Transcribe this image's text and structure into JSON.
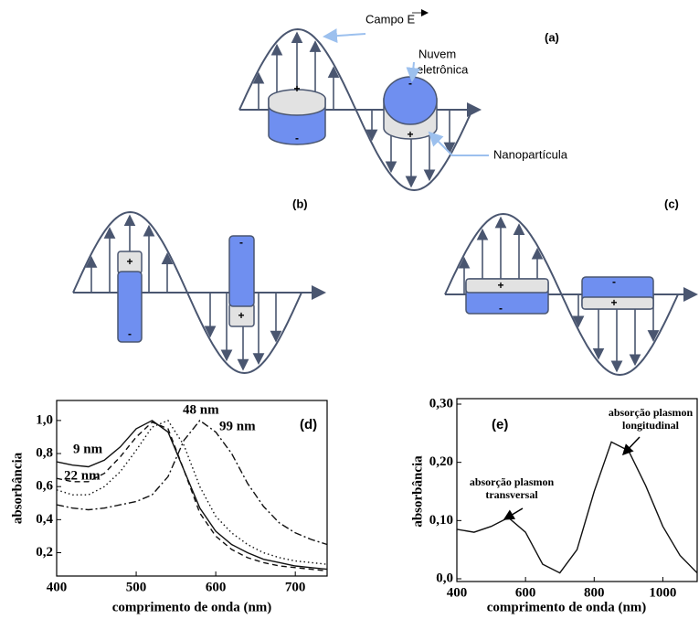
{
  "diagrams": {
    "signs": {
      "plus": "+",
      "minus": "-"
    },
    "a": {
      "label": "(a)",
      "field": "Campo E",
      "cloud": [
        "Nuvem",
        "eletrônica"
      ],
      "particle": "Nanopartícula"
    },
    "b": {
      "label": "(b)"
    },
    "c": {
      "label": "(c)"
    }
  },
  "chart_data": [
    {
      "type": "line",
      "panel": "(d)",
      "xlabel": "comprimento de onda (nm)",
      "ylabel": "absorbância",
      "x": [
        400,
        420,
        440,
        460,
        480,
        500,
        520,
        540,
        560,
        580,
        600,
        620,
        640,
        660,
        680,
        700,
        720,
        740
      ],
      "xlim": [
        400,
        740
      ],
      "xticks": [
        400,
        500,
        600,
        700
      ],
      "ylim": [
        0.07,
        1.11
      ],
      "yticks": [
        {
          "value": 0.2,
          "label": "0,2"
        },
        {
          "value": 0.4,
          "label": "0,4"
        },
        {
          "value": 0.6,
          "label": "0,6"
        },
        {
          "value": 0.8,
          "label": "0,8"
        },
        {
          "value": 1.0,
          "label": "1,0"
        }
      ],
      "series": [
        {
          "name": "9 nm",
          "color": "#111111",
          "line_style": "solid",
          "values": [
            0.75,
            0.73,
            0.72,
            0.76,
            0.84,
            0.95,
            1.0,
            0.93,
            0.7,
            0.47,
            0.33,
            0.25,
            0.2,
            0.16,
            0.14,
            0.12,
            0.11,
            0.1
          ]
        },
        {
          "name": "22 nm",
          "color": "#111111",
          "line_style": "dashed",
          "values": [
            0.65,
            0.63,
            0.63,
            0.68,
            0.78,
            0.9,
            0.99,
            0.95,
            0.7,
            0.44,
            0.3,
            0.22,
            0.17,
            0.14,
            0.12,
            0.11,
            0.1,
            0.09
          ]
        },
        {
          "name": "48 nm",
          "color": "#111111",
          "line_style": "dotted",
          "values": [
            0.58,
            0.55,
            0.55,
            0.6,
            0.69,
            0.82,
            0.96,
            1.0,
            0.85,
            0.6,
            0.42,
            0.32,
            0.25,
            0.2,
            0.17,
            0.15,
            0.14,
            0.13
          ]
        },
        {
          "name": "99 nm",
          "color": "#111111",
          "line_style": "dashdot",
          "values": [
            0.49,
            0.47,
            0.46,
            0.47,
            0.49,
            0.51,
            0.55,
            0.66,
            0.88,
            1.0,
            0.93,
            0.8,
            0.62,
            0.48,
            0.38,
            0.32,
            0.28,
            0.25
          ]
        }
      ]
    },
    {
      "type": "line",
      "panel": "(e)",
      "xlabel": "comprimento de onda (nm)",
      "ylabel": "absorbância",
      "x": [
        400,
        450,
        500,
        550,
        600,
        650,
        700,
        750,
        800,
        850,
        900,
        950,
        1000,
        1050,
        1100
      ],
      "xlim": [
        400,
        1100
      ],
      "xticks": [
        400,
        600,
        800,
        1000
      ],
      "ylim": [
        0,
        0.3
      ],
      "yticks": [
        {
          "value": 0,
          "label": "0,0"
        },
        {
          "value": 0.1,
          "label": "0,10"
        },
        {
          "value": 0.2,
          "label": "0,20"
        },
        {
          "value": 0.3,
          "label": "0,30"
        }
      ],
      "series": [
        {
          "color": "#111111",
          "line_style": "solid",
          "values": [
            0.085,
            0.08,
            0.09,
            0.105,
            0.08,
            0.025,
            0.01,
            0.05,
            0.15,
            0.235,
            0.22,
            0.16,
            0.09,
            0.04,
            0.01
          ]
        }
      ],
      "annotations": [
        [
          "absorção plasmon",
          "transversal"
        ],
        [
          "absorção plasmon",
          "longitudinal"
        ]
      ]
    }
  ]
}
